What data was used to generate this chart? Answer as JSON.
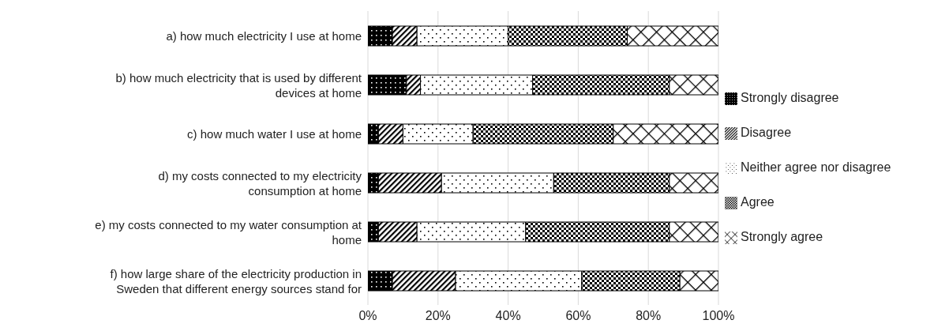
{
  "chart_data": {
    "type": "bar",
    "orientation": "horizontal",
    "stacked": true,
    "categories": [
      "a) how much electricity I use at home",
      "b) how much electricity that is used by different devices at home",
      "c) how much water I use at home",
      "d) my costs connected to my electricity consumption at home",
      "e) my costs connected to my water consumption at home",
      "f) how large share of the electricity production in Sweden that different energy sources stand for"
    ],
    "series": [
      {
        "name": "Strongly disagree",
        "color": "#000000",
        "values": [
          7,
          11,
          3,
          3,
          3,
          7
        ]
      },
      {
        "name": "Disagree",
        "color": "#000000",
        "values": [
          7,
          4,
          7,
          18,
          11,
          18
        ]
      },
      {
        "name": "Neither agree nor disagree",
        "color": "#000000",
        "values": [
          26,
          32,
          20,
          32,
          31,
          36
        ]
      },
      {
        "name": "Agree",
        "color": "#000000",
        "values": [
          34,
          39,
          40,
          33,
          41,
          28
        ]
      },
      {
        "name": "Strongly agree",
        "color": "#000000",
        "values": [
          26,
          14,
          30,
          14,
          14,
          11
        ]
      }
    ],
    "xlim": [
      0,
      100
    ],
    "xticks": [
      {
        "value": 0,
        "label": "0%"
      },
      {
        "value": 20,
        "label": "20%"
      },
      {
        "value": 40,
        "label": "40%"
      },
      {
        "value": 60,
        "label": "60%"
      },
      {
        "value": 80,
        "label": "80%"
      },
      {
        "value": 100,
        "label": "100%"
      }
    ],
    "grid": "x",
    "legend": "right"
  }
}
